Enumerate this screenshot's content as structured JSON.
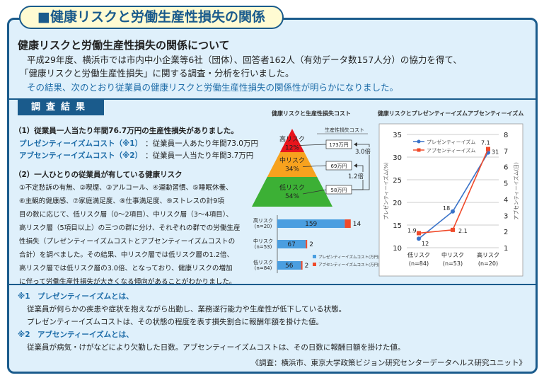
{
  "title": "■健康リスクと労働生産性損失の関係",
  "intro": {
    "heading": "健康リスクと労働生産性損失の関係について",
    "line1": "平成29年度、横浜市では市内中小企業等6社（団体）、回答者162人（有効データ数157人分）の協力を得て、",
    "line2": "「健康リスクと労働生産性損失」に関する調査・分析を行いました。",
    "line3": "その結果、次のとおり従業員の健康リスクと労働生産性損失の関係性が明らかになりました。"
  },
  "results": {
    "section_label": "調査結果",
    "p1_heading": "（1）従業員一人当たり年間76.7万円の生産性損失がありました。",
    "p1_rows": [
      {
        "label": "プレゼンティーイズムコスト（※1）",
        "value": "：従業員一人あたり年間73.0万円"
      },
      {
        "label": "アブセンティーイズムコスト（※2）",
        "value": "：従業員一人当たり年間3.7万円"
      }
    ],
    "p2_heading": "（2）一人ひとりの従業員が有している健康リスク",
    "p2_lines": [
      "①不定愁訴の有無、②喫煙、③アルコール、④運動習慣、⑤睡眠休養、",
      "⑥主観的健康感、⑦家庭満足度、⑧仕事満足度、⑨ストレスの計9項",
      "目の数に応じて、低リスク層（0〜2項目）、中リスク層（3〜4項目）、",
      "高リスク層（5項目以上）の三つの群に分け、それぞれの群での労働生産",
      "性損失（プレゼンティーイズムコストとアブセンティーイズムコストの",
      "合計）を調べました。その結果、中リスク層では低リスク層の1.2倍、",
      "高リスク層では低リスク層の3.0倍、となっており、健康リスクの増加",
      "に伴って労働生産性損失が大きくなる傾向があることがわかりました。"
    ]
  },
  "notes": {
    "n1_heading": "※1　プレゼンティーイズムとは、",
    "n1_line1": "従業員が何らかの疾患や症状を抱えながら出勤し、業務遂行能力や生産性が低下している状態。",
    "n1_line2": "プレゼンティーイズムコストは、その状態の程度を表す損失割合に報酬年額を掛けた値。",
    "n2_heading": "※2　アブセンティーイズムとは、",
    "n2_line1": "従業員が病気・けがなどにより欠勤した日数。アブセンティーイズムコストは、その日数に報酬日額を掛けた値。",
    "source": "《調査：横浜市、東京大学政策ビジョン研究センターデータヘルス研究ユニット》"
  },
  "chart_data": [
    {
      "type": "pyramid",
      "title": "健康リスクと生産性損失コスト",
      "cost_header": "生産性損失コスト",
      "levels": [
        {
          "name": "高リスク",
          "share_label": "12%",
          "share": 12,
          "cost_label": "173万円",
          "cost": 173,
          "color": "#e8141c"
        },
        {
          "name": "中リスク",
          "share_label": "34%",
          "share": 34,
          "cost_label": "69万円",
          "cost": 69,
          "color": "#f7a21e"
        },
        {
          "name": "低リスク",
          "share_label": "54%",
          "share": 54,
          "cost_label": "58万円",
          "cost": 58,
          "color": "#3cb035"
        }
      ],
      "ratios": [
        {
          "label": "3.0倍",
          "value": 3.0
        },
        {
          "label": "1.2倍",
          "value": 1.2
        }
      ]
    },
    {
      "type": "bar",
      "orientation": "horizontal-stacked",
      "categories": [
        "高リスク",
        "中リスク",
        "低リスク"
      ],
      "category_n": [
        "(n=20)",
        "(n=53)",
        "(n=84)"
      ],
      "series": [
        {
          "name": "プレゼンティーイズムコスト(万円)",
          "values": [
            159,
            67,
            56
          ],
          "color": "#4a9ee0"
        },
        {
          "name": "アブセンティーイズムコスト(万円)",
          "values": [
            14,
            2,
            2
          ],
          "color": "#f04a2a"
        }
      ],
      "legend": "bottom-right"
    },
    {
      "type": "line",
      "title": "健康リスクとプレゼンティーイズムアブセンティーイズム",
      "categories": [
        "低リスク",
        "中リスク",
        "高リスク"
      ],
      "category_n": [
        "(n=84)",
        "(n=53)",
        "(n=20)"
      ],
      "ylabel": "プレゼンティーイズム(%)",
      "y2label": "アブセンティーイズム(日)",
      "ylim": [
        10,
        35
      ],
      "yticks": [
        "10",
        "15",
        "20",
        "25",
        "30",
        "35"
      ],
      "y2lim": [
        1,
        8
      ],
      "y2ticks": [
        "1",
        "2",
        "3",
        "4",
        "5",
        "6",
        "7",
        "8"
      ],
      "series": [
        {
          "name": "プレゼンティーイズム",
          "axis": "left",
          "values": [
            12,
            18,
            31
          ],
          "labels": [
            "12",
            "18",
            "31"
          ],
          "color": "#3a73c9"
        },
        {
          "name": "アブセンティーイズム",
          "axis": "right",
          "values": [
            1.9,
            2.1,
            7.1
          ],
          "labels": [
            "1.9",
            "2.1",
            "7.1"
          ],
          "color": "#f04a2a"
        }
      ],
      "grid": true,
      "legend": "top-left"
    }
  ]
}
